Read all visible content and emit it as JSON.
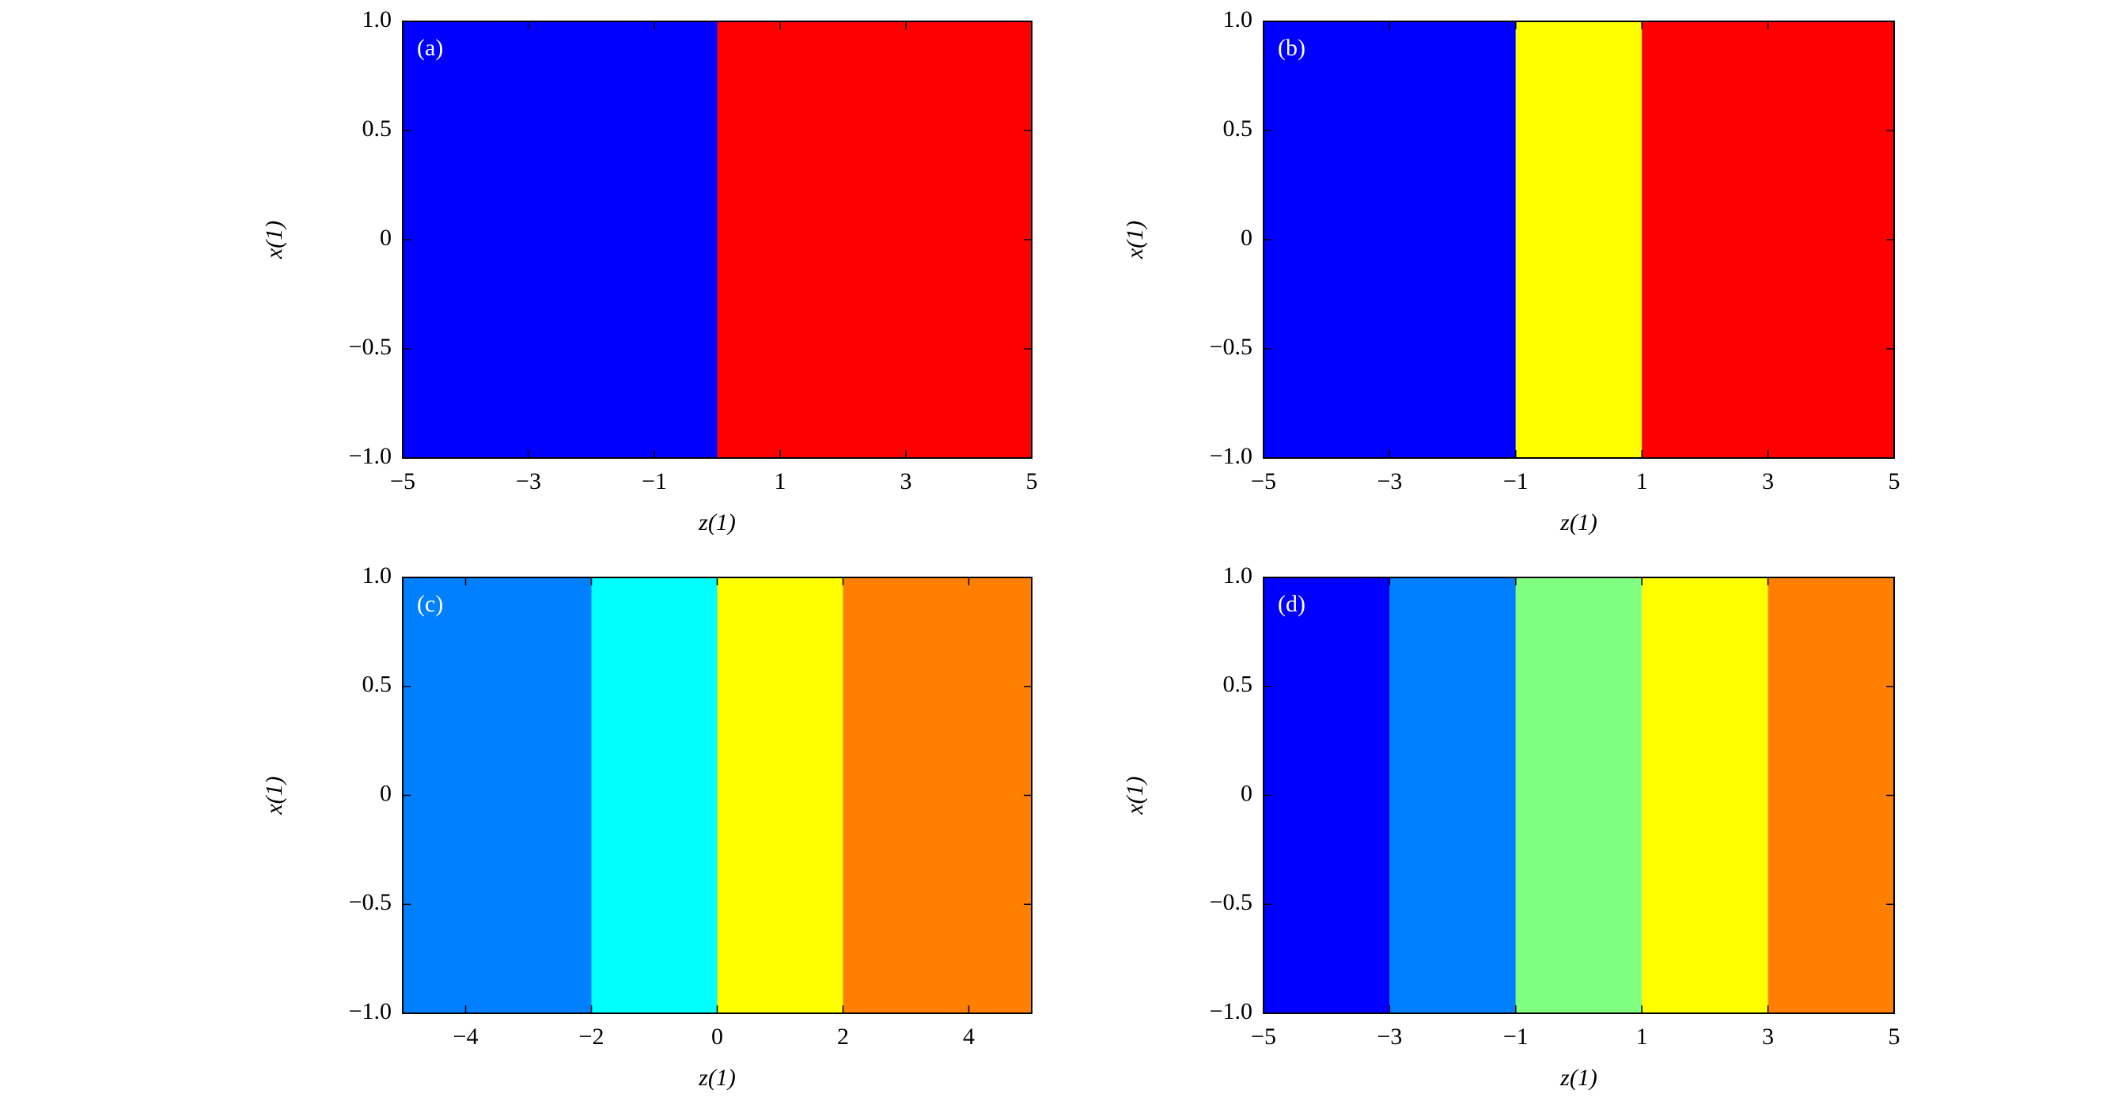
{
  "chart_data": [
    {
      "type": "bands",
      "panel_label": "(a)",
      "xlabel": "z(1)",
      "ylabel": "x(1)",
      "xlim": [
        -5,
        5
      ],
      "ylim": [
        -1,
        1
      ],
      "xticks": [
        {
          "value": -5,
          "label": "−5"
        },
        {
          "value": -3,
          "label": "−3"
        },
        {
          "value": -1,
          "label": "−1"
        },
        1,
        3,
        5
      ],
      "yticks": [
        {
          "value": -1,
          "label": "−1.0"
        },
        {
          "value": -0.5,
          "label": "−0.5"
        },
        0,
        0.5,
        {
          "value": 1,
          "label": "1.0"
        }
      ],
      "edges": [
        -5,
        0,
        5
      ],
      "colors": [
        "#0000ff",
        "#ff0000"
      ]
    },
    {
      "type": "bands",
      "panel_label": "(b)",
      "xlabel": "z(1)",
      "ylabel": "x(1)",
      "xlim": [
        -5,
        5
      ],
      "ylim": [
        -1,
        1
      ],
      "xticks": [
        {
          "value": -5,
          "label": "−5"
        },
        {
          "value": -3,
          "label": "−3"
        },
        {
          "value": -1,
          "label": "−1"
        },
        1,
        3,
        5
      ],
      "yticks": [
        {
          "value": -1,
          "label": "−1.0"
        },
        {
          "value": -0.5,
          "label": "−0.5"
        },
        0,
        0.5,
        {
          "value": 1,
          "label": "1.0"
        }
      ],
      "edges": [
        -5,
        -1,
        1,
        5
      ],
      "colors": [
        "#0000ff",
        "#ffff00",
        "#ff0000"
      ]
    },
    {
      "type": "bands",
      "panel_label": "(c)",
      "xlabel": "z(1)",
      "ylabel": "x(1)",
      "xlim": [
        -5,
        5
      ],
      "ylim": [
        -1,
        1
      ],
      "xticks": [
        {
          "value": -4,
          "label": "−4"
        },
        {
          "value": -2,
          "label": "−2"
        },
        0,
        2,
        4
      ],
      "yticks": [
        {
          "value": -1,
          "label": "−1.0"
        },
        {
          "value": -0.5,
          "label": "−0.5"
        },
        0,
        0.5,
        {
          "value": 1,
          "label": "1.0"
        }
      ],
      "edges": [
        -5,
        -2,
        0,
        2,
        5
      ],
      "colors": [
        "#0080ff",
        "#00ffff",
        "#ffff00",
        "#ff8000"
      ]
    },
    {
      "type": "bands",
      "panel_label": "(d)",
      "xlabel": "z(1)",
      "ylabel": "x(1)",
      "xlim": [
        -5,
        5
      ],
      "ylim": [
        -1,
        1
      ],
      "xticks": [
        {
          "value": -5,
          "label": "−5"
        },
        {
          "value": -3,
          "label": "−3"
        },
        {
          "value": -1,
          "label": "−1"
        },
        1,
        3,
        5
      ],
      "yticks": [
        {
          "value": -1,
          "label": "−1.0"
        },
        {
          "value": -0.5,
          "label": "−0.5"
        },
        0,
        0.5,
        {
          "value": 1,
          "label": "1.0"
        }
      ],
      "edges": [
        -5,
        -3,
        -1,
        1,
        3,
        5
      ],
      "colors": [
        "#0000ff",
        "#0080ff",
        "#80ff80",
        "#ffff00",
        "#ff8000"
      ]
    }
  ]
}
